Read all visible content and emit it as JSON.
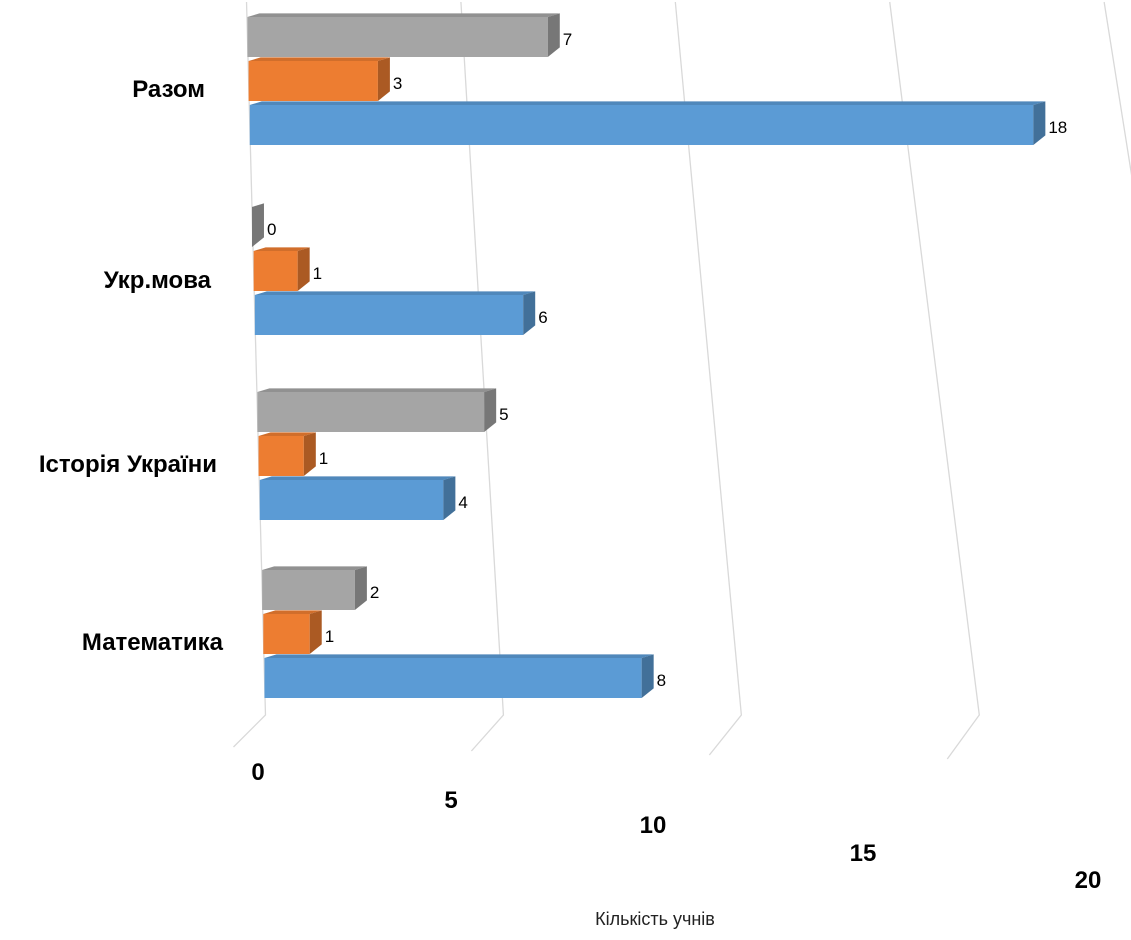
{
  "chart_data": {
    "type": "bar",
    "orientation": "horizontal",
    "style": "3d",
    "categories": [
      "Математика",
      "Історія України",
      "Укр.мова",
      "Разом"
    ],
    "series": [
      {
        "values": [
          8,
          4,
          6,
          18
        ],
        "color": "#5b9bd5"
      },
      {
        "values": [
          1,
          1,
          1,
          3
        ],
        "color": "#ed7d31"
      },
      {
        "values": [
          2,
          5,
          0,
          7
        ],
        "color": "#a5a5a5"
      }
    ],
    "x_ticks": [
      "0",
      "5",
      "10",
      "15",
      "20"
    ],
    "xlim": [
      0,
      20
    ],
    "xlabel": "Кількість учнів",
    "grid": true,
    "data_labels": true,
    "legend": false
  }
}
